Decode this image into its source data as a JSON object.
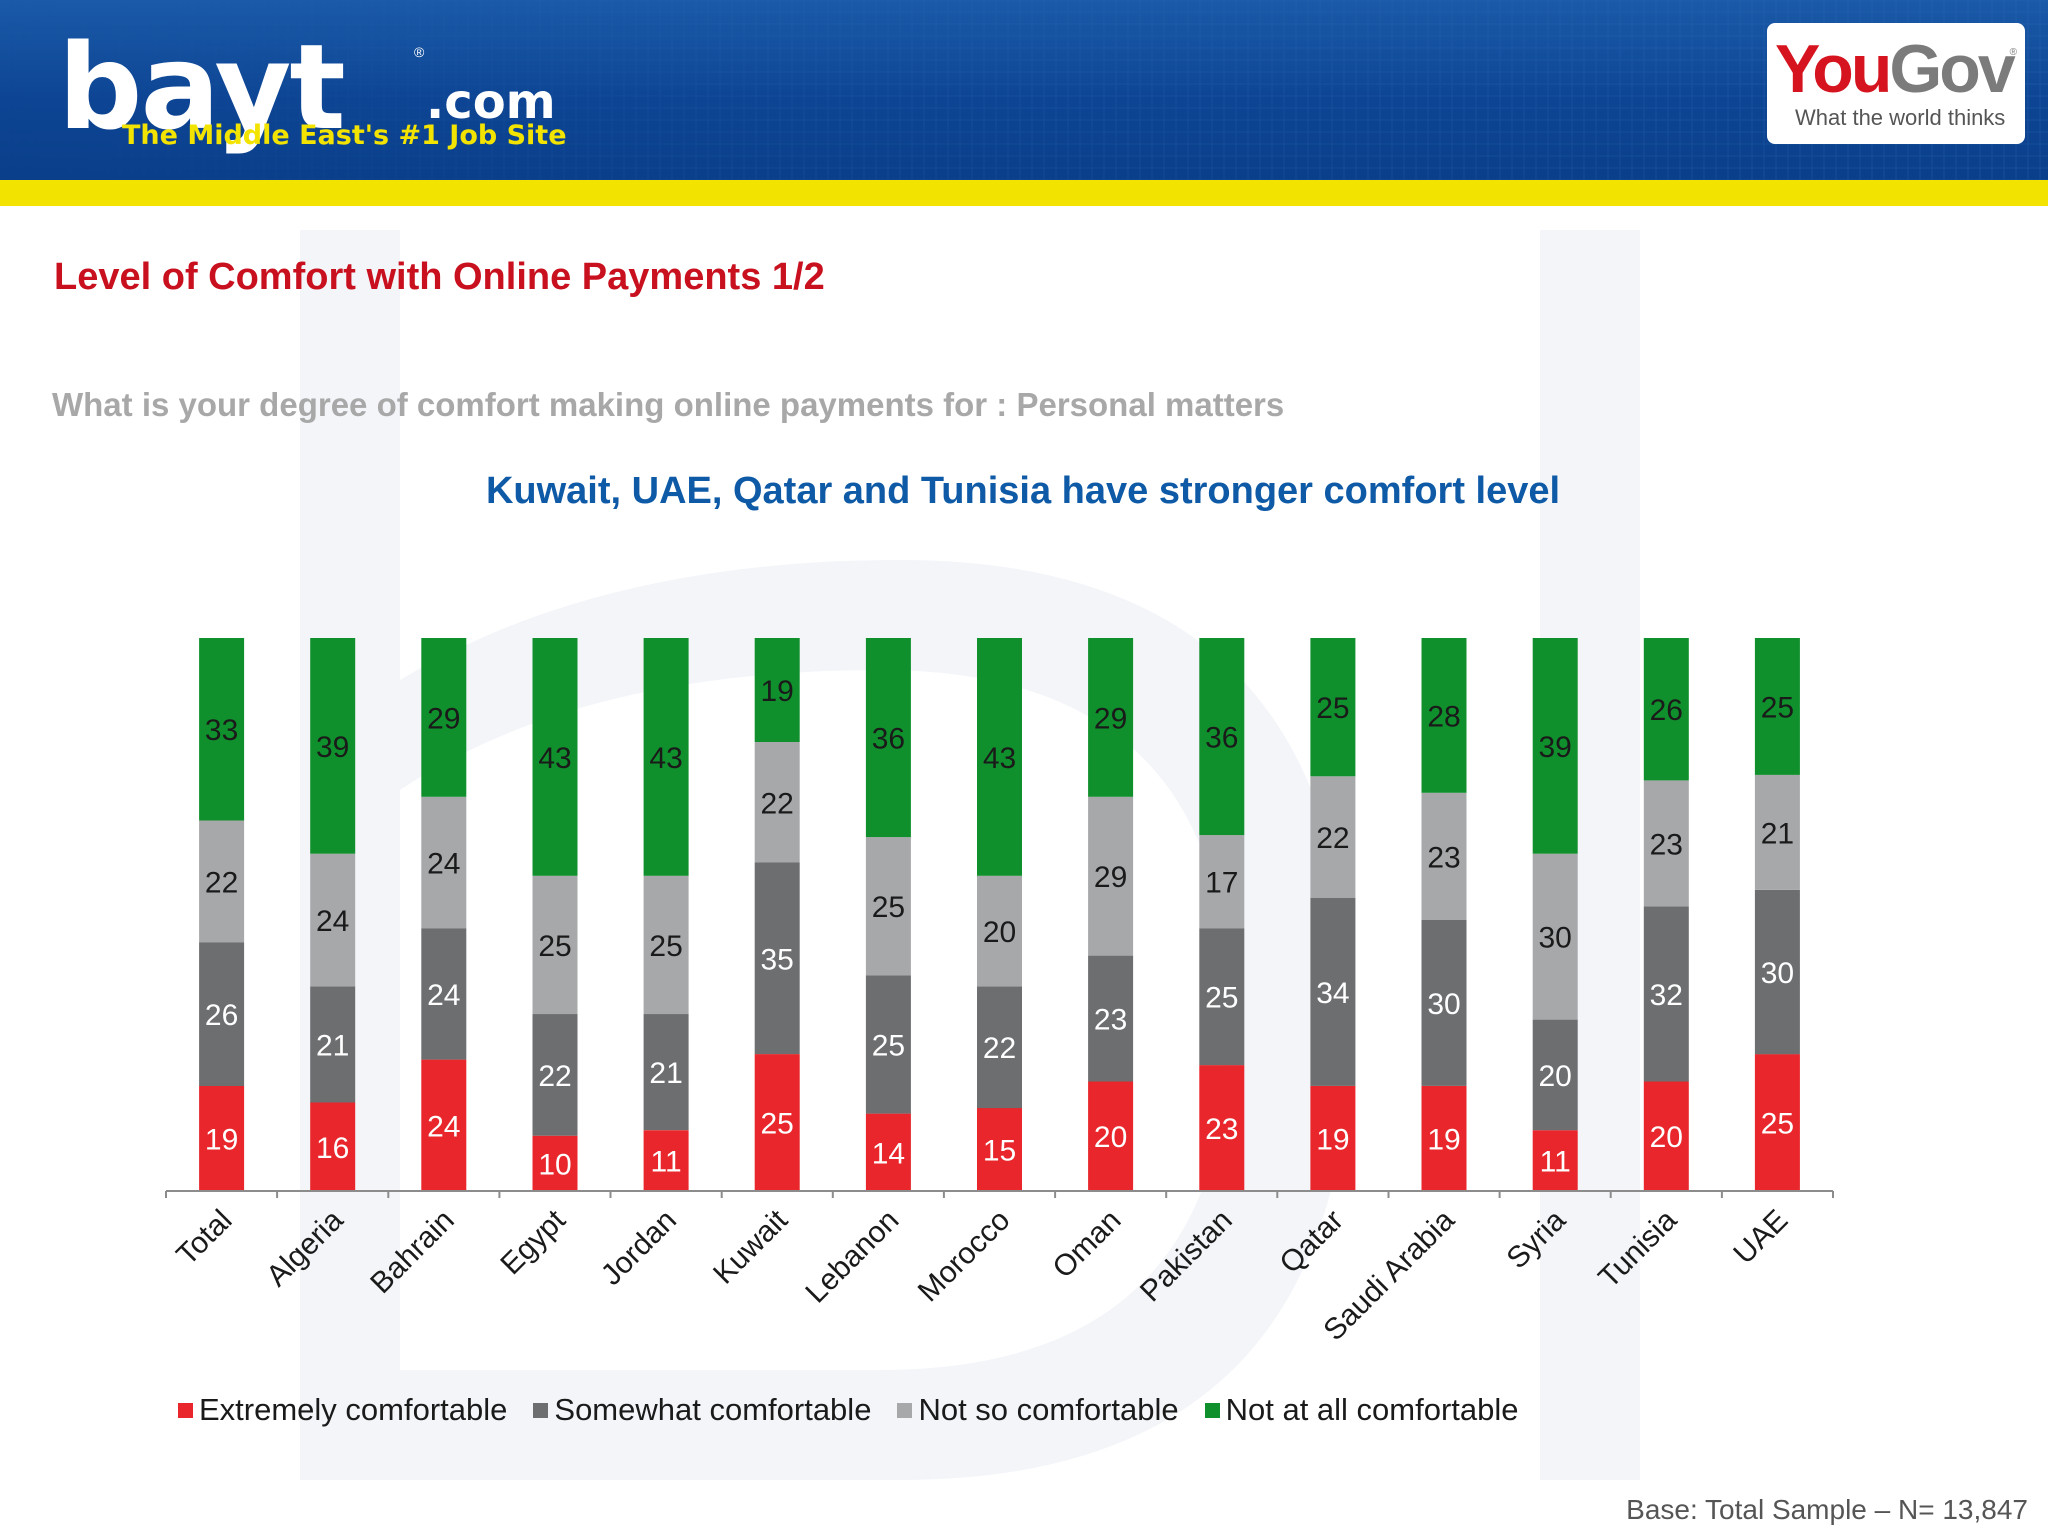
{
  "header": {
    "logo_text": "bayt",
    "logo_suffix": ".com",
    "tagline": "The Middle East's #1 Job Site",
    "partner_brand_you": "You",
    "partner_brand_gov": "Gov",
    "partner_tagline": "What the world thinks",
    "colors": {
      "banner": "#0d4594",
      "stripe": "#f3e300"
    }
  },
  "page_title": "Level of Comfort with Online Payments 1/2",
  "question": "What is your degree of comfort making online payments for :  Personal matters",
  "headline": "Kuwait, UAE, Qatar and Tunisia have stronger comfort level",
  "footnote": "Base: Total Sample – N= 13,847",
  "chart_data": {
    "type": "bar",
    "stacked": true,
    "percent_stacked": true,
    "categories": [
      "Total",
      "Algeria",
      "Bahrain",
      "Egypt",
      "Jordan",
      "Kuwait",
      "Lebanon",
      "Morocco",
      "Oman",
      "Pakistan",
      "Qatar",
      "Saudi Arabia",
      "Syria",
      "Tunisia",
      "UAE"
    ],
    "series": [
      {
        "name": "Extremely comfortable",
        "color": "#e8262b",
        "label_color": "#ffffff",
        "values": [
          19,
          16,
          24,
          10,
          11,
          25,
          14,
          15,
          20,
          23,
          19,
          19,
          11,
          20,
          25
        ]
      },
      {
        "name": "Somewhat comfortable",
        "color": "#6d6e70",
        "label_color": "#ffffff",
        "values": [
          26,
          21,
          24,
          22,
          21,
          35,
          25,
          22,
          23,
          25,
          34,
          30,
          20,
          32,
          30
        ]
      },
      {
        "name": "Not so comfortable",
        "color": "#a7a8aa",
        "label_color": "#1a1a1a",
        "values": [
          22,
          24,
          24,
          25,
          25,
          22,
          25,
          20,
          29,
          17,
          22,
          23,
          30,
          23,
          21
        ]
      },
      {
        "name": "Not at all comfortable",
        "color": "#10902c",
        "label_color": "#1a1a1a",
        "values": [
          33,
          39,
          29,
          43,
          43,
          19,
          36,
          43,
          29,
          36,
          25,
          28,
          39,
          26,
          25
        ]
      }
    ],
    "legend_position": "bottom",
    "grid": false,
    "ylim": [
      0,
      100
    ]
  }
}
